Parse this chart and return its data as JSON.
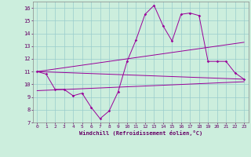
{
  "xlabel": "Windchill (Refroidissement éolien,°C)",
  "background_color": "#cceedd",
  "grid_color": "#99cccc",
  "line_color": "#990099",
  "xlim": [
    -0.5,
    23.5
  ],
  "ylim": [
    7,
    16.5
  ],
  "xticks": [
    0,
    1,
    2,
    3,
    4,
    5,
    6,
    7,
    8,
    9,
    10,
    11,
    12,
    13,
    14,
    15,
    16,
    17,
    18,
    19,
    20,
    21,
    22,
    23
  ],
  "yticks": [
    7,
    8,
    9,
    10,
    11,
    12,
    13,
    14,
    15,
    16
  ],
  "line1_x": [
    0,
    1,
    2,
    3,
    4,
    5,
    6,
    7,
    8,
    9,
    10,
    11,
    12,
    13,
    14,
    15,
    16,
    17,
    18,
    19,
    20,
    21,
    22,
    23
  ],
  "line1_y": [
    11.0,
    10.8,
    9.6,
    9.6,
    9.1,
    9.3,
    8.2,
    7.3,
    7.9,
    9.4,
    11.8,
    13.5,
    15.5,
    16.2,
    14.6,
    13.4,
    15.5,
    15.6,
    15.4,
    11.8,
    11.8,
    11.8,
    10.9,
    10.4
  ],
  "line2_x": [
    0,
    23
  ],
  "line2_y": [
    11.0,
    10.4
  ],
  "line3_x": [
    0,
    23
  ],
  "line3_y": [
    11.0,
    13.3
  ],
  "line4_x": [
    0,
    23
  ],
  "line4_y": [
    9.5,
    10.2
  ]
}
